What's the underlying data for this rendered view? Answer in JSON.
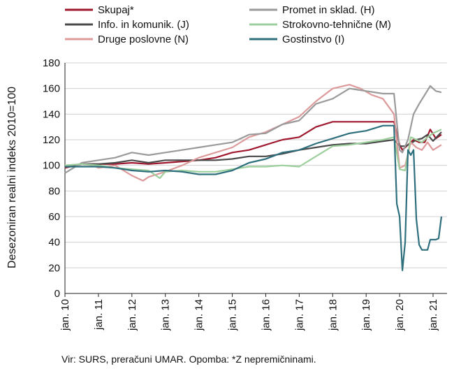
{
  "chart_data": {
    "type": "line",
    "ylabel": "Desezoniran realni indeks 2010=100",
    "ylim": [
      0,
      180
    ],
    "yticks": [
      0,
      20,
      40,
      60,
      80,
      100,
      120,
      140,
      160,
      180
    ],
    "xticks": [
      "jan. 10",
      "jan. 11",
      "jan. 12",
      "jan. 13",
      "jan. 14",
      "jan. 15",
      "jan. 16",
      "jan. 17",
      "jan. 18",
      "jan. 19",
      "jan. 20",
      "jan. 21"
    ],
    "grid": true,
    "x_unit": "month index from jan. 10",
    "series": [
      {
        "name": "Skupaj*",
        "color": "#a0182e",
        "points": [
          [
            0,
            98
          ],
          [
            6,
            101
          ],
          [
            12,
            101
          ],
          [
            18,
            101
          ],
          [
            24,
            102
          ],
          [
            30,
            101
          ],
          [
            36,
            102
          ],
          [
            42,
            103
          ],
          [
            48,
            104
          ],
          [
            54,
            106
          ],
          [
            60,
            110
          ],
          [
            66,
            112
          ],
          [
            72,
            116
          ],
          [
            78,
            120
          ],
          [
            84,
            122
          ],
          [
            90,
            130
          ],
          [
            96,
            134
          ],
          [
            102,
            134
          ],
          [
            108,
            134
          ],
          [
            118,
            134
          ],
          [
            120,
            116
          ],
          [
            121,
            112
          ],
          [
            123,
            116
          ],
          [
            125,
            120
          ],
          [
            127,
            118
          ],
          [
            129,
            118
          ],
          [
            131,
            128
          ],
          [
            133,
            121
          ],
          [
            135,
            124
          ]
        ]
      },
      {
        "name": "Info. in komunik. (J)",
        "color": "#4a4a4a",
        "points": [
          [
            0,
            99
          ],
          [
            6,
            101
          ],
          [
            12,
            101
          ],
          [
            18,
            102
          ],
          [
            24,
            104
          ],
          [
            30,
            102
          ],
          [
            36,
            104
          ],
          [
            42,
            104
          ],
          [
            48,
            104
          ],
          [
            54,
            104
          ],
          [
            60,
            105
          ],
          [
            66,
            107
          ],
          [
            72,
            107
          ],
          [
            78,
            109
          ],
          [
            84,
            112
          ],
          [
            90,
            114
          ],
          [
            96,
            116
          ],
          [
            102,
            117
          ],
          [
            108,
            117
          ],
          [
            118,
            120
          ],
          [
            120,
            115
          ],
          [
            122,
            115
          ],
          [
            124,
            117
          ],
          [
            126,
            120
          ],
          [
            128,
            121
          ],
          [
            130,
            124
          ],
          [
            132,
            119
          ],
          [
            135,
            126
          ]
        ]
      },
      {
        "name": "Druge poslovne (N)",
        "color": "#dc9a9a",
        "points": [
          [
            0,
            100
          ],
          [
            6,
            101
          ],
          [
            10,
            100
          ],
          [
            12,
            98
          ],
          [
            18,
            100
          ],
          [
            24,
            92
          ],
          [
            28,
            88
          ],
          [
            30,
            91
          ],
          [
            36,
            95
          ],
          [
            42,
            100
          ],
          [
            48,
            106
          ],
          [
            54,
            110
          ],
          [
            60,
            114
          ],
          [
            66,
            122
          ],
          [
            72,
            126
          ],
          [
            78,
            132
          ],
          [
            84,
            138
          ],
          [
            90,
            150
          ],
          [
            96,
            160
          ],
          [
            102,
            163
          ],
          [
            106,
            160
          ],
          [
            110,
            155
          ],
          [
            114,
            152
          ],
          [
            118,
            140
          ],
          [
            120,
            98
          ],
          [
            122,
            100
          ],
          [
            124,
            118
          ],
          [
            126,
            114
          ],
          [
            128,
            112
          ],
          [
            130,
            118
          ],
          [
            132,
            112
          ],
          [
            135,
            116
          ]
        ]
      },
      {
        "name": "Promet in sklad. (H)",
        "color": "#9a9a9a",
        "points": [
          [
            0,
            94
          ],
          [
            6,
            102
          ],
          [
            12,
            104
          ],
          [
            18,
            106
          ],
          [
            24,
            110
          ],
          [
            30,
            108
          ],
          [
            36,
            110
          ],
          [
            42,
            112
          ],
          [
            48,
            114
          ],
          [
            54,
            116
          ],
          [
            60,
            118
          ],
          [
            66,
            124
          ],
          [
            72,
            125
          ],
          [
            78,
            132
          ],
          [
            84,
            135
          ],
          [
            90,
            148
          ],
          [
            96,
            152
          ],
          [
            102,
            160
          ],
          [
            108,
            158
          ],
          [
            114,
            156
          ],
          [
            118,
            156
          ],
          [
            120,
            112
          ],
          [
            121,
            110
          ],
          [
            123,
            120
          ],
          [
            125,
            140
          ],
          [
            127,
            148
          ],
          [
            129,
            155
          ],
          [
            131,
            162
          ],
          [
            133,
            158
          ],
          [
            135,
            157
          ]
        ]
      },
      {
        "name": "Strokovno-tehnične (M)",
        "color": "#9ccf9c",
        "points": [
          [
            0,
            100
          ],
          [
            6,
            101
          ],
          [
            12,
            100
          ],
          [
            18,
            98
          ],
          [
            24,
            97
          ],
          [
            30,
            96
          ],
          [
            34,
            90
          ],
          [
            36,
            95
          ],
          [
            42,
            96
          ],
          [
            48,
            95
          ],
          [
            54,
            95
          ],
          [
            60,
            97
          ],
          [
            66,
            99
          ],
          [
            72,
            99
          ],
          [
            78,
            100
          ],
          [
            84,
            99
          ],
          [
            90,
            107
          ],
          [
            96,
            115
          ],
          [
            102,
            116
          ],
          [
            108,
            118
          ],
          [
            114,
            120
          ],
          [
            118,
            122
          ],
          [
            120,
            97
          ],
          [
            122,
            96
          ],
          [
            124,
            122
          ],
          [
            126,
            120
          ],
          [
            128,
            118
          ],
          [
            130,
            122
          ],
          [
            132,
            125
          ],
          [
            135,
            128
          ]
        ]
      },
      {
        "name": "Gostinstvo (I)",
        "color": "#2e6f7e",
        "points": [
          [
            0,
            99
          ],
          [
            6,
            99
          ],
          [
            12,
            99
          ],
          [
            18,
            98
          ],
          [
            24,
            96
          ],
          [
            30,
            95
          ],
          [
            36,
            96
          ],
          [
            42,
            95
          ],
          [
            48,
            93
          ],
          [
            54,
            93
          ],
          [
            60,
            96
          ],
          [
            66,
            102
          ],
          [
            72,
            105
          ],
          [
            78,
            110
          ],
          [
            84,
            112
          ],
          [
            90,
            117
          ],
          [
            96,
            121
          ],
          [
            102,
            125
          ],
          [
            108,
            127
          ],
          [
            114,
            131
          ],
          [
            118,
            131
          ],
          [
            119,
            70
          ],
          [
            120,
            60
          ],
          [
            121,
            18
          ],
          [
            122,
            40
          ],
          [
            123,
            112
          ],
          [
            124,
            108
          ],
          [
            125,
            112
          ],
          [
            126,
            58
          ],
          [
            127,
            38
          ],
          [
            128,
            34
          ],
          [
            130,
            34
          ],
          [
            131,
            42
          ],
          [
            133,
            42
          ],
          [
            134,
            43
          ],
          [
            135,
            60
          ]
        ]
      }
    ]
  },
  "footnote": "Vir: SURS, preračuni UMAR. Opomba: *Z nepremičninami."
}
